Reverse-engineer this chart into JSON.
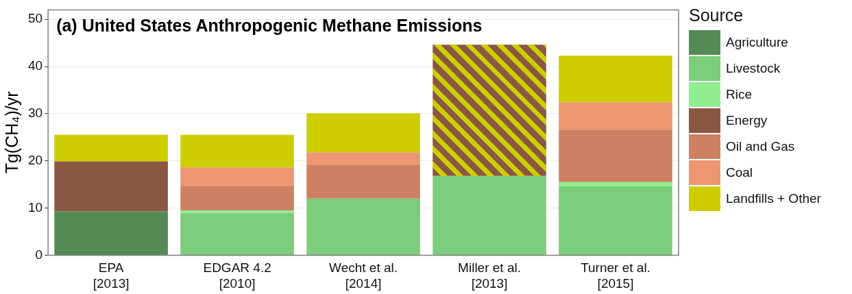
{
  "chart_data": {
    "type": "bar",
    "title": "(a) United States Anthropogenic Methane Emissions",
    "ylabel": "Tg(CH₄)/yr",
    "legend_title": "Source",
    "categories": [
      "EPA\n[2013]",
      "EDGAR 4.2\n[2010]",
      "Wecht et al.\n[2014]",
      "Miller et al.\n[2013]",
      "Turner et al.\n[2015]"
    ],
    "stacked": true,
    "ylim": [
      0,
      52
    ],
    "yticks": [
      0,
      10,
      20,
      30,
      40,
      50
    ],
    "grid": true,
    "legend": "right",
    "series": [
      {
        "name": "Agriculture",
        "color": "#548b54",
        "values": [
          9.3,
          null,
          null,
          null,
          null
        ]
      },
      {
        "name": "Livestock",
        "color": "#7ccd7c",
        "values": [
          null,
          9.0,
          12.0,
          16.8,
          14.6
        ]
      },
      {
        "name": "Rice",
        "color": "#90ee90",
        "values": [
          null,
          0.5,
          null,
          null,
          0.9
        ]
      },
      {
        "name": "Energy",
        "color": "#8b5742",
        "values": [
          10.6,
          null,
          null,
          null,
          null
        ]
      },
      {
        "name": "Oil and Gas",
        "color": "#cd8162",
        "values": [
          null,
          5.2,
          7.2,
          null,
          11.1
        ]
      },
      {
        "name": "Coal",
        "color": "#ee9572",
        "values": [
          null,
          3.9,
          2.6,
          null,
          5.8
        ]
      },
      {
        "color": "#8b5742",
        "values": [
          null,
          null,
          null,
          27.8,
          null
        ]
      },
      {
        "name": "Landfills + Other",
        "color": "#cdcd00",
        "values": [
          5.6,
          6.9,
          8.3,
          null,
          9.9
        ]
      }
    ]
  }
}
